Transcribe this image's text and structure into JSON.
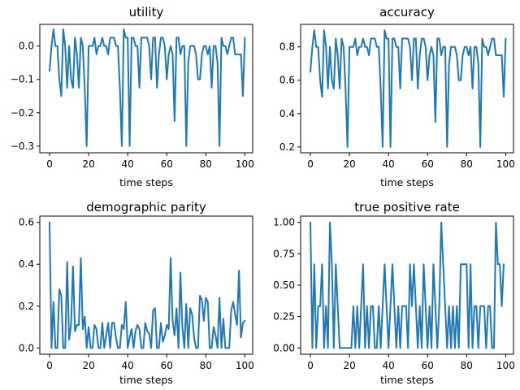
{
  "chart_data": [
    {
      "type": "line",
      "title": "utility",
      "xlabel": "time steps",
      "ylabel": "",
      "xlim": [
        -5,
        104
      ],
      "ylim": [
        -0.32,
        0.065
      ],
      "xticks": [
        0,
        20,
        40,
        60,
        80,
        100
      ],
      "yticks": [
        0.0,
        -0.1,
        -0.2,
        -0.3
      ],
      "ytick_labels": [
        "0.0",
        "−0.1",
        "−0.2",
        "−0.3"
      ],
      "color": "#1f77b4",
      "series": [
        {
          "values": [
            -0.075,
            0.0,
            0.05,
            0.0,
            0.0,
            -0.1,
            -0.15,
            0.05,
            0.0,
            -0.125,
            0.0,
            -0.1,
            -0.125,
            0.025,
            -0.025,
            -0.125,
            0.025,
            0.0,
            -0.125,
            -0.3,
            0.0,
            0.0,
            0.0,
            0.025,
            -0.025,
            0.0,
            0.0,
            0.025,
            0.0,
            0.0,
            -0.025,
            0.025,
            0.025,
            0.025,
            0.0,
            0.0,
            -0.125,
            -0.3,
            0.05,
            0.025,
            0.025,
            -0.3,
            0.025,
            0.025,
            0.0,
            0.0,
            -0.125,
            0.025,
            0.025,
            0.025,
            0.025,
            0.0,
            -0.1,
            0.025,
            0.025,
            -0.125,
            -0.025,
            0.025,
            0.025,
            0.0,
            -0.1,
            -0.025,
            0.0,
            -0.025,
            -0.225,
            0.025,
            0.025,
            -0.025,
            0.0,
            0.0,
            -0.3,
            -0.05,
            0.0,
            0.0,
            0.0,
            -0.025,
            -0.1,
            -0.1,
            -0.025,
            0.0,
            0.0,
            -0.025,
            0.0,
            -0.125,
            0.0,
            0.0,
            -0.05,
            -0.3,
            0.025,
            0.0,
            0.0,
            -0.025,
            0.0,
            0.025,
            0.025,
            -0.025,
            -0.025,
            -0.025,
            -0.025,
            -0.15,
            0.025
          ]
        }
      ]
    },
    {
      "type": "line",
      "title": "accuracy",
      "xlabel": "time steps",
      "ylabel": "",
      "xlim": [
        -5,
        104
      ],
      "ylim": [
        0.165,
        0.935
      ],
      "xticks": [
        0,
        20,
        40,
        60,
        80,
        100
      ],
      "yticks": [
        0.2,
        0.4,
        0.6,
        0.8
      ],
      "ytick_labels": [
        "0.2",
        "0.4",
        "0.6",
        "0.8"
      ],
      "color": "#1f77b4",
      "series": [
        {
          "values": [
            0.65,
            0.8,
            0.9,
            0.8,
            0.8,
            0.6,
            0.5,
            0.9,
            0.8,
            0.55,
            0.8,
            0.6,
            0.55,
            0.85,
            0.75,
            0.55,
            0.85,
            0.8,
            0.55,
            0.2,
            0.8,
            0.8,
            0.8,
            0.85,
            0.75,
            0.8,
            0.8,
            0.85,
            0.8,
            0.8,
            0.75,
            0.85,
            0.85,
            0.85,
            0.8,
            0.8,
            0.55,
            0.2,
            0.9,
            0.85,
            0.85,
            0.2,
            0.85,
            0.85,
            0.8,
            0.8,
            0.55,
            0.85,
            0.85,
            0.85,
            0.85,
            0.8,
            0.6,
            0.85,
            0.85,
            0.55,
            0.75,
            0.85,
            0.85,
            0.8,
            0.6,
            0.75,
            0.8,
            0.75,
            0.35,
            0.85,
            0.85,
            0.75,
            0.8,
            0.8,
            0.2,
            0.7,
            0.8,
            0.8,
            0.8,
            0.75,
            0.6,
            0.6,
            0.75,
            0.8,
            0.8,
            0.75,
            0.8,
            0.55,
            0.8,
            0.8,
            0.7,
            0.2,
            0.85,
            0.8,
            0.8,
            0.75,
            0.8,
            0.85,
            0.85,
            0.75,
            0.75,
            0.75,
            0.75,
            0.5,
            0.85
          ]
        }
      ]
    },
    {
      "type": "line",
      "title": "demographic parity",
      "xlabel": "time steps",
      "ylabel": "",
      "xlim": [
        -5,
        104
      ],
      "ylim": [
        -0.03,
        0.63
      ],
      "xticks": [
        0,
        20,
        40,
        60,
        80,
        100
      ],
      "yticks": [
        0.0,
        0.2,
        0.4,
        0.6
      ],
      "ytick_labels": [
        "0.0",
        "0.2",
        "0.4",
        "0.6"
      ],
      "color": "#1f77b4",
      "series": [
        {
          "values": [
            0.6,
            0.0,
            0.22,
            0.0,
            0.0,
            0.28,
            0.25,
            0.0,
            0.0,
            0.41,
            0.04,
            0.11,
            0.39,
            0.08,
            0.11,
            0.11,
            0.43,
            0.09,
            0.15,
            0.0,
            0.1,
            0.0,
            0.0,
            0.11,
            0.09,
            0.0,
            0.0,
            0.12,
            0.0,
            0.06,
            0.12,
            0.0,
            0.12,
            0.12,
            0.05,
            0.0,
            0.0,
            0.11,
            0.09,
            0.22,
            0.0,
            0.05,
            0.09,
            0.0,
            0.08,
            0.11,
            0.09,
            0.0,
            0.0,
            0.12,
            0.08,
            0.07,
            0.0,
            0.18,
            0.19,
            0.0,
            0.0,
            0.12,
            0.03,
            0.06,
            0.11,
            0.09,
            0.43,
            0.13,
            0.06,
            0.19,
            0.0,
            0.36,
            0.1,
            0.0,
            0.21,
            0.0,
            0.19,
            0.16,
            0.05,
            0.0,
            0.0,
            0.25,
            0.23,
            0.13,
            0.24,
            0.22,
            0.0,
            0.0,
            0.1,
            0.06,
            0.0,
            0.24,
            0.0,
            0.14,
            0.0,
            0.0,
            0.0,
            0.18,
            0.22,
            0.16,
            0.11,
            0.37,
            0.05,
            0.12,
            0.13
          ]
        }
      ]
    },
    {
      "type": "line",
      "title": "true positive rate",
      "xlabel": "time steps",
      "ylabel": "",
      "xlim": [
        -5,
        104
      ],
      "ylim": [
        -0.05,
        1.05
      ],
      "xticks": [
        0,
        20,
        40,
        60,
        80,
        100
      ],
      "yticks": [
        0.0,
        0.25,
        0.5,
        0.75,
        1.0
      ],
      "ytick_labels": [
        "0.00",
        "0.25",
        "0.50",
        "0.75",
        "1.00"
      ],
      "color": "#1f77b4",
      "series": [
        {
          "values": [
            1.0,
            0.0,
            0.667,
            0.0,
            0.333,
            0.333,
            0.667,
            0.0,
            0.333,
            0.0,
            1.0,
            0.667,
            0.0,
            0.667,
            0.333,
            0.0,
            0.0,
            0.0,
            0.0,
            0.0,
            0.0,
            0.0,
            0.333,
            0.0,
            0.333,
            0.0,
            0.333,
            0.667,
            0.0,
            0.333,
            0.0,
            0.333,
            0.333,
            0.0,
            0.0,
            0.333,
            0.0,
            0.333,
            0.667,
            0.333,
            0.0,
            0.333,
            0.667,
            0.333,
            0.0,
            0.333,
            0.0,
            0.333,
            0.333,
            0.333,
            0.0,
            0.667,
            0.333,
            0.667,
            0.333,
            0.0,
            0.333,
            0.0,
            0.667,
            0.333,
            0.0,
            0.333,
            0.0,
            0.667,
            0.333,
            0.0,
            0.333,
            1.0,
            0.667,
            0.333,
            0.0,
            0.333,
            0.0,
            0.333,
            0.0,
            0.333,
            0.0,
            0.667,
            0.667,
            0.667,
            0.667,
            0.0,
            0.667,
            0.0,
            0.333,
            0.333,
            0.0,
            0.333,
            0.333,
            0.333,
            0.0,
            0.333,
            0.333,
            0.0,
            0.0,
            1.0,
            0.667,
            0.667,
            0.333,
            0.667
          ]
        }
      ]
    }
  ]
}
